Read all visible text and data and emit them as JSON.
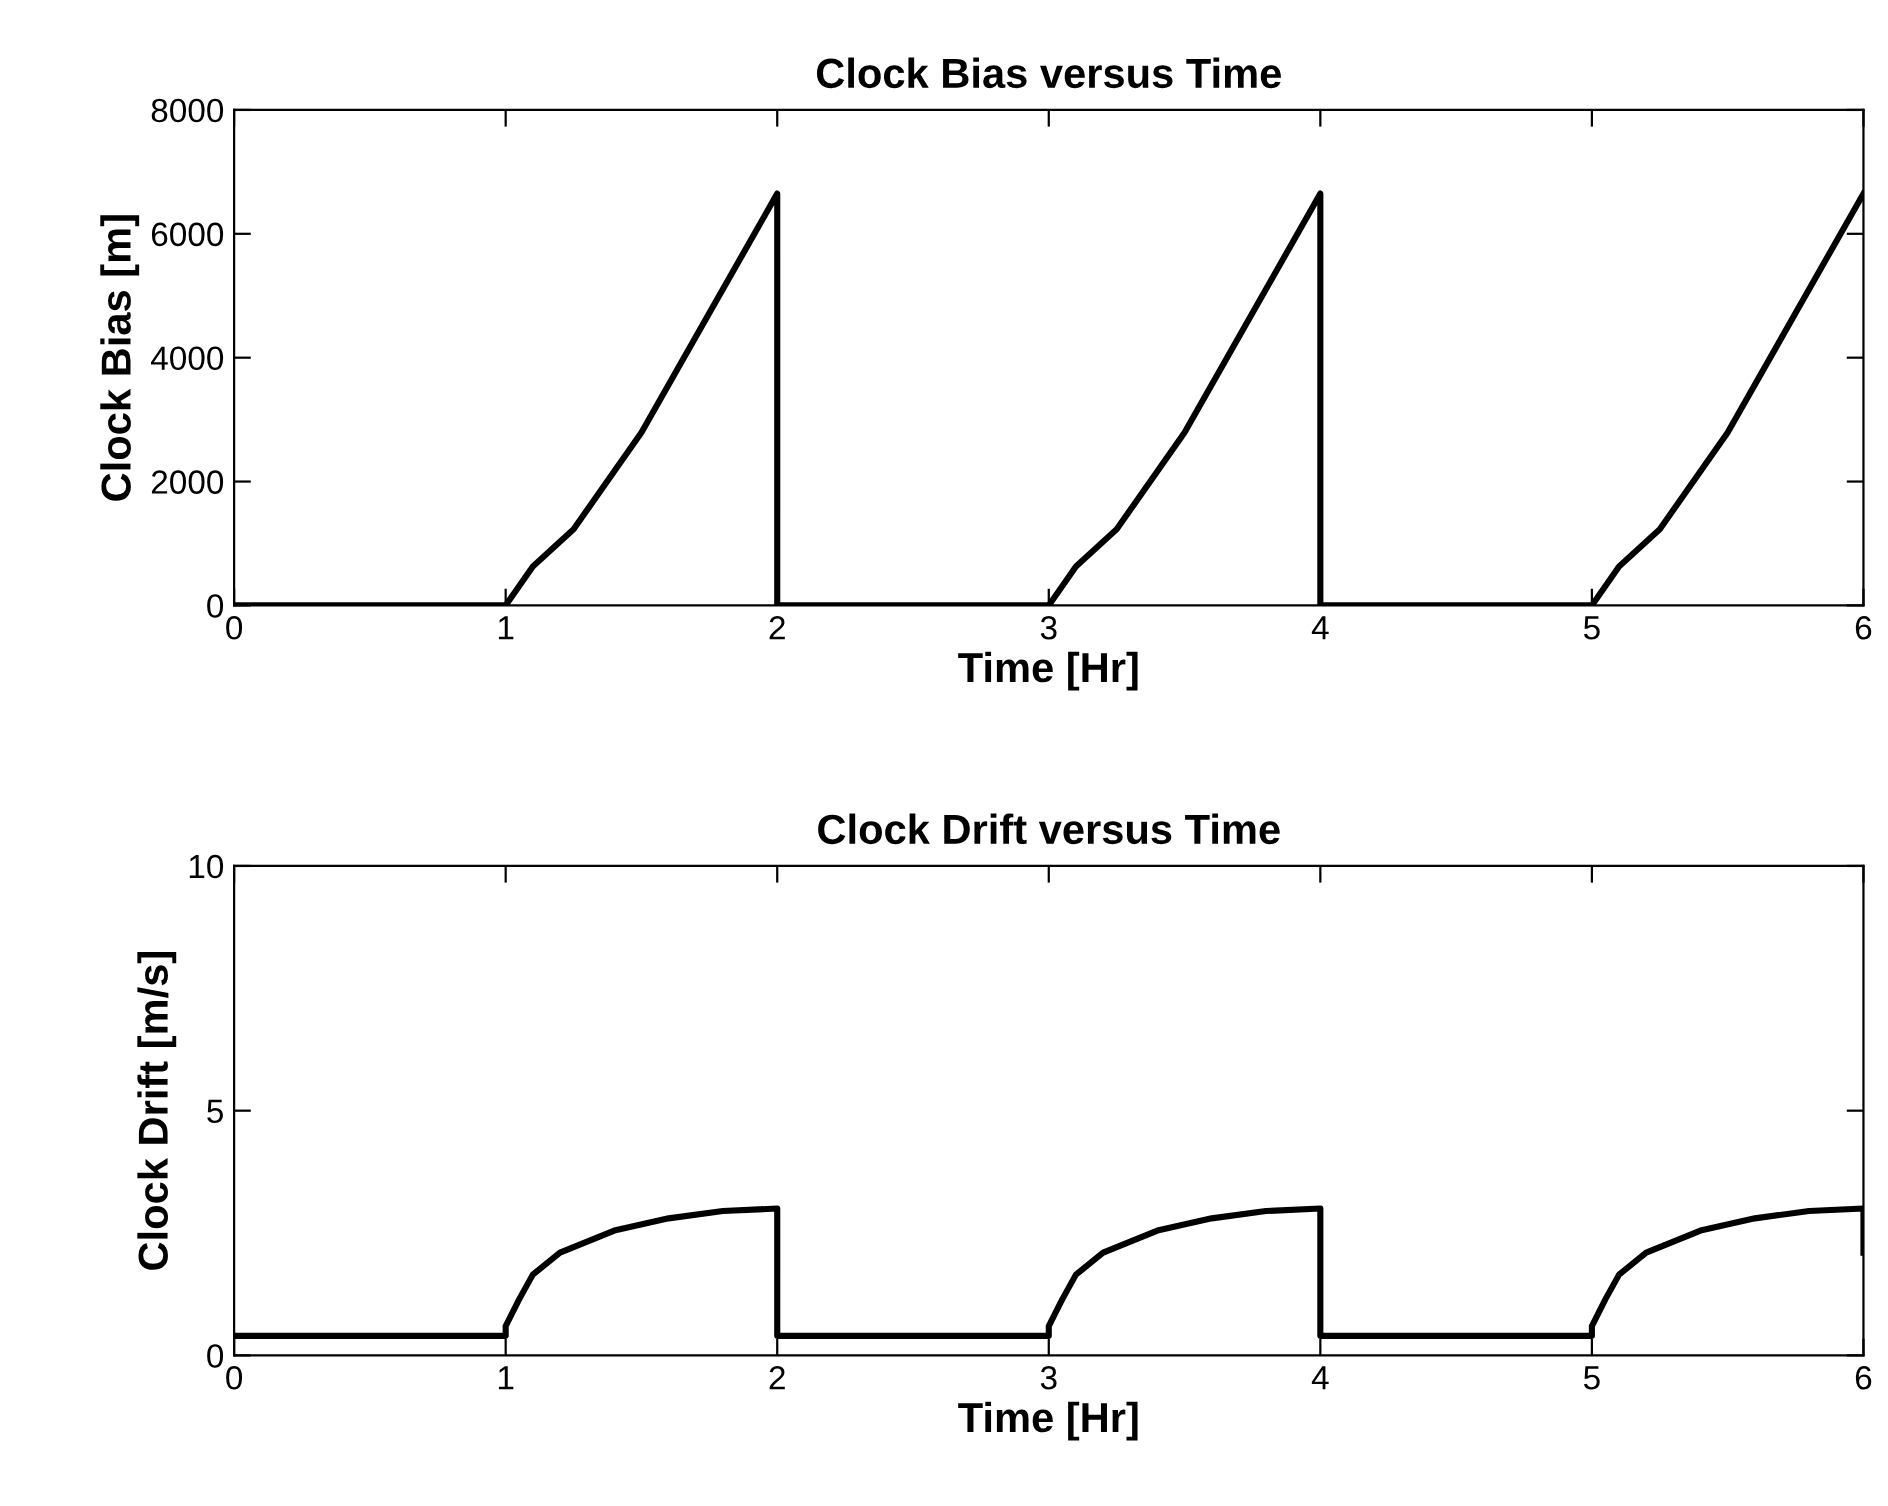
{
  "chart_data": [
    {
      "type": "line",
      "title": "Clock Bias versus Time",
      "xlabel": "Time [Hr]",
      "ylabel": "Clock Bias [m]",
      "xlim": [
        0,
        6
      ],
      "xticks": [
        0,
        1,
        2,
        3,
        4,
        5,
        6
      ],
      "ylim": [
        0,
        8000
      ],
      "yticks": [
        0,
        2000,
        4000,
        6000,
        8000
      ],
      "grid": false,
      "legend": false,
      "marker": "none",
      "line_style": "solid",
      "series": [
        {
          "color": "#000000",
          "x": [
            0,
            1,
            1.1,
            1.25,
            1.5,
            1.75,
            2,
            2,
            3,
            3.1,
            3.25,
            3.5,
            3.75,
            4,
            4,
            5,
            5.1,
            5.25,
            5.5,
            5.75,
            6
          ],
          "values": [
            0,
            0,
            630,
            1230,
            2790,
            4720,
            6650,
            0,
            0,
            630,
            1230,
            2790,
            4720,
            6650,
            0,
            0,
            630,
            1230,
            2790,
            4720,
            6650
          ]
        }
      ]
    },
    {
      "type": "line",
      "title": "Clock Drift versus Time",
      "xlabel": "Time [Hr]",
      "ylabel": "Clock Drift [m/s]",
      "xlim": [
        0,
        6
      ],
      "xticks": [
        0,
        1,
        2,
        3,
        4,
        5,
        6
      ],
      "ylim": [
        0,
        10
      ],
      "yticks": [
        0,
        5,
        10
      ],
      "grid": false,
      "legend": false,
      "marker": "none",
      "line_style": "solid",
      "series": [
        {
          "color": "#000000",
          "x": [
            0,
            1,
            1,
            1.05,
            1.1,
            1.2,
            1.4,
            1.6,
            1.8,
            2,
            2,
            3,
            3,
            3.05,
            3.1,
            3.2,
            3.4,
            3.6,
            3.8,
            4,
            4,
            5,
            5,
            5.05,
            5.1,
            5.2,
            5.4,
            5.6,
            5.8,
            6,
            6
          ],
          "values": [
            0.4,
            0.4,
            0.6,
            1.15,
            1.65,
            2.1,
            2.55,
            2.8,
            2.95,
            3.0,
            0.4,
            0.4,
            0.6,
            1.15,
            1.65,
            2.1,
            2.55,
            2.8,
            2.95,
            3.0,
            0.4,
            0.4,
            0.6,
            1.15,
            1.65,
            2.1,
            2.55,
            2.8,
            2.95,
            3.0,
            2.1
          ]
        }
      ]
    }
  ]
}
